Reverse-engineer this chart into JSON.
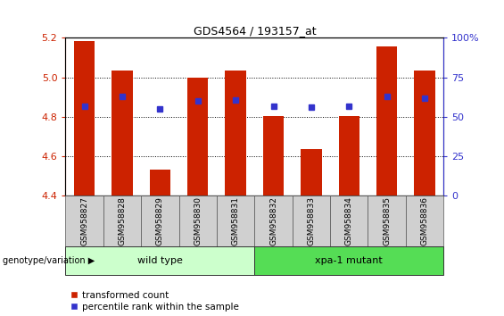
{
  "title": "GDS4564 / 193157_at",
  "samples": [
    "GSM958827",
    "GSM958828",
    "GSM958829",
    "GSM958830",
    "GSM958831",
    "GSM958832",
    "GSM958833",
    "GSM958834",
    "GSM958835",
    "GSM958836"
  ],
  "transformed_count": [
    5.185,
    5.035,
    4.535,
    5.0,
    5.035,
    4.805,
    4.635,
    4.805,
    5.155,
    5.035
  ],
  "percentile_rank": [
    57,
    63,
    55,
    60,
    61,
    57,
    56,
    57,
    63,
    62
  ],
  "ylim": [
    4.4,
    5.2
  ],
  "yticks": [
    4.4,
    4.6,
    4.8,
    5.0,
    5.2
  ],
  "right_ylim": [
    0,
    100
  ],
  "right_yticks": [
    0,
    25,
    50,
    75,
    100
  ],
  "right_yticklabels": [
    "0",
    "25",
    "50",
    "75",
    "100%"
  ],
  "bar_color": "#cc2200",
  "dot_color": "#3333cc",
  "wild_type_indices": [
    0,
    1,
    2,
    3,
    4
  ],
  "xpa_mutant_indices": [
    5,
    6,
    7,
    8,
    9
  ],
  "wild_type_label": "wild type",
  "xpa_mutant_label": "xpa-1 mutant",
  "wild_type_color": "#ccffcc",
  "xpa_mutant_color": "#55dd55",
  "genotype_label": "genotype/variation",
  "legend_red_label": "transformed count",
  "legend_blue_label": "percentile rank within the sample",
  "ybase": 4.4,
  "bar_width": 0.55
}
